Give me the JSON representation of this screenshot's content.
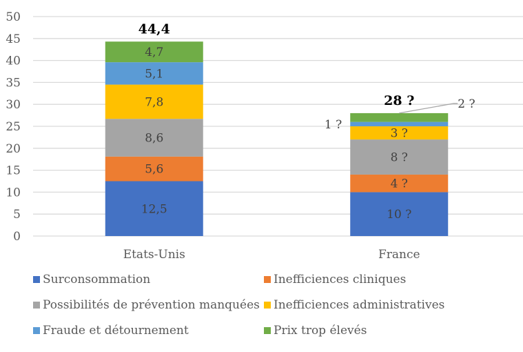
{
  "chart_data": {
    "type": "bar",
    "stacked": true,
    "title": "",
    "xlabel": "",
    "ylabel": "",
    "ylim": [
      0,
      50
    ],
    "yticks": [
      "0",
      "5",
      "10",
      "15",
      "20",
      "25",
      "30",
      "35",
      "40",
      "45",
      "50"
    ],
    "grid": true,
    "legend_position": "bottom",
    "categories": [
      "Etats-Unis",
      "France"
    ],
    "totals": [
      {
        "value": 44.4,
        "label": "44,4"
      },
      {
        "value": 28,
        "label": "28 ?"
      }
    ],
    "series": [
      {
        "name": "Surconsommation",
        "color": "#4472C4",
        "values": [
          12.5,
          10
        ],
        "labels": [
          "12,5",
          "10 ?"
        ]
      },
      {
        "name": "Inefficiences cliniques",
        "color": "#ED7D31",
        "values": [
          5.6,
          4
        ],
        "labels": [
          "5,6",
          "4 ?"
        ]
      },
      {
        "name": "Possibilités de prévention manquées",
        "color": "#A5A5A5",
        "values": [
          8.6,
          8
        ],
        "labels": [
          "8,6",
          "8 ?"
        ]
      },
      {
        "name": "Inefficiences administratives",
        "color": "#FFC000",
        "values": [
          7.8,
          3
        ],
        "labels": [
          "7,8",
          "3 ?"
        ]
      },
      {
        "name": "Fraude et détournement",
        "color": "#5B9BD5",
        "values": [
          5.1,
          1
        ],
        "labels": [
          "5,1",
          "1 ?"
        ]
      },
      {
        "name": "Prix trop élevés",
        "color": "#70AD47",
        "values": [
          4.7,
          2
        ],
        "labels": [
          "4,7",
          "2 ?"
        ]
      }
    ]
  }
}
